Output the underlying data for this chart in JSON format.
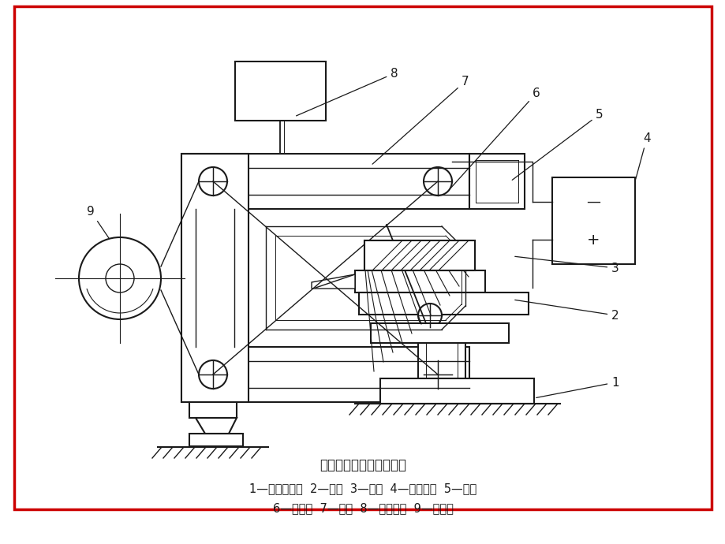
{
  "title": "电火花线切割加工示意图",
  "caption_line1": "1—坐标工作台  2—夹具  3—工件  4—脉冲电源  5—导轮",
  "caption_line2": "6—电极丝  7—丝架  8—工作液箱  9—贮丝筒",
  "border_color": "#cc0000",
  "line_color": "#1a1a1a",
  "bg_color": "#ffffff",
  "title_fontsize": 12,
  "caption_fontsize": 10.5
}
